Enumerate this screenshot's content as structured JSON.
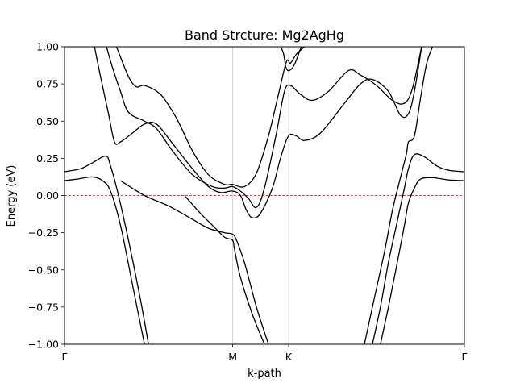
{
  "chart_data": {
    "type": "line",
    "title": "Band Strcture: Mg2AgHg",
    "xlabel": "k-path",
    "ylabel": "Energy (eV)",
    "xlim": [
      0,
      1
    ],
    "ylim": [
      -1.0,
      1.0
    ],
    "yticks": [
      -1.0,
      -0.75,
      -0.5,
      -0.25,
      0.0,
      0.25,
      0.5,
      0.75,
      1.0
    ],
    "ytick_labels": [
      "−1.00",
      "−0.75",
      "−0.50",
      "−0.25",
      "0.00",
      "0.25",
      "0.50",
      "0.75",
      "1.00"
    ],
    "kpoints": [
      {
        "label": "Γ",
        "x": 0.0
      },
      {
        "label": "M",
        "x": 0.4206
      },
      {
        "label": "K",
        "x": 0.5605
      },
      {
        "label": "Γ",
        "x": 1.0
      }
    ],
    "fermi_level": 0.0,
    "grid": "vertical lines at high-symmetry points",
    "colors": {
      "bands": "#000000",
      "fermi": "#ff0000",
      "kpath_lines": "#cccccc"
    },
    "series": [
      {
        "values": [
          [
            0.0,
            0.16
          ],
          [
            0.04,
            0.18
          ],
          [
            0.07,
            0.22
          ],
          [
            0.103,
            0.265
          ],
          [
            0.115,
            0.2
          ],
          [
            0.135,
            0.0
          ],
          [
            0.16,
            -0.3
          ],
          [
            0.19,
            -0.7
          ],
          [
            0.21,
            -1.0
          ]
        ]
      },
      {
        "values": [
          [
            0.0,
            0.1
          ],
          [
            0.03,
            0.11
          ],
          [
            0.07,
            0.125
          ],
          [
            0.095,
            0.1
          ],
          [
            0.115,
            0.03
          ],
          [
            0.14,
            -0.2
          ],
          [
            0.17,
            -0.6
          ],
          [
            0.2,
            -1.0
          ]
        ]
      },
      {
        "values": [
          [
            0.075,
            1.0
          ],
          [
            0.09,
            0.8
          ],
          [
            0.11,
            0.55
          ],
          [
            0.125,
            0.36
          ],
          [
            0.14,
            0.36
          ],
          [
            0.17,
            0.42
          ],
          [
            0.2,
            0.48
          ],
          [
            0.23,
            0.48
          ],
          [
            0.27,
            0.35
          ],
          [
            0.32,
            0.18
          ],
          [
            0.36,
            0.06
          ],
          [
            0.39,
            0.02
          ],
          [
            0.42,
            0.03
          ],
          [
            0.44,
            0.0
          ],
          [
            0.455,
            -0.1
          ],
          [
            0.47,
            -0.15
          ],
          [
            0.49,
            -0.12
          ],
          [
            0.52,
            0.05
          ],
          [
            0.54,
            0.25
          ],
          [
            0.56,
            0.4
          ],
          [
            0.58,
            0.4
          ],
          [
            0.6,
            0.37
          ],
          [
            0.64,
            0.42
          ],
          [
            0.7,
            0.62
          ],
          [
            0.74,
            0.75
          ],
          [
            0.77,
            0.78
          ],
          [
            0.81,
            0.7
          ],
          [
            0.84,
            0.54
          ],
          [
            0.86,
            0.55
          ],
          [
            0.875,
            0.7
          ],
          [
            0.893,
            1.0
          ]
        ]
      },
      {
        "values": [
          [
            0.105,
            1.0
          ],
          [
            0.12,
            0.86
          ],
          [
            0.14,
            0.7
          ],
          [
            0.16,
            0.56
          ],
          [
            0.2,
            0.5
          ],
          [
            0.23,
            0.45
          ],
          [
            0.27,
            0.3
          ],
          [
            0.32,
            0.14
          ],
          [
            0.37,
            0.06
          ],
          [
            0.4,
            0.05
          ],
          [
            0.42,
            0.06
          ],
          [
            0.44,
            0.03
          ],
          [
            0.46,
            -0.02
          ],
          [
            0.48,
            -0.08
          ],
          [
            0.5,
            0.05
          ],
          [
            0.53,
            0.42
          ],
          [
            0.55,
            0.7
          ],
          [
            0.565,
            0.74
          ],
          [
            0.59,
            0.68
          ],
          [
            0.62,
            0.64
          ],
          [
            0.66,
            0.7
          ],
          [
            0.71,
            0.84
          ],
          [
            0.74,
            0.81
          ],
          [
            0.78,
            0.74
          ],
          [
            0.82,
            0.64
          ],
          [
            0.85,
            0.62
          ],
          [
            0.87,
            0.72
          ],
          [
            0.893,
            1.0
          ]
        ]
      },
      {
        "values": [
          [
            0.13,
            1.0
          ],
          [
            0.16,
            0.8
          ],
          [
            0.18,
            0.73
          ],
          [
            0.2,
            0.74
          ],
          [
            0.24,
            0.68
          ],
          [
            0.28,
            0.52
          ],
          [
            0.32,
            0.3
          ],
          [
            0.36,
            0.14
          ],
          [
            0.4,
            0.075
          ],
          [
            0.42,
            0.075
          ],
          [
            0.45,
            0.06
          ],
          [
            0.48,
            0.15
          ],
          [
            0.51,
            0.4
          ],
          [
            0.535,
            0.68
          ],
          [
            0.555,
            0.9
          ],
          [
            0.565,
            0.89
          ],
          [
            0.58,
            0.95
          ],
          [
            0.6,
            1.0
          ]
        ]
      },
      {
        "values": [
          [
            0.541,
            1.0
          ],
          [
            0.548,
            0.95
          ],
          [
            0.554,
            0.86
          ],
          [
            0.562,
            0.84
          ],
          [
            0.575,
            0.88
          ],
          [
            0.592,
            1.0
          ]
        ]
      },
      {
        "values": [
          [
            0.14,
            0.1
          ],
          [
            0.2,
            0.0
          ],
          [
            0.26,
            -0.07
          ],
          [
            0.32,
            -0.16
          ],
          [
            0.36,
            -0.22
          ],
          [
            0.4,
            -0.25
          ],
          [
            0.42,
            -0.26
          ],
          [
            0.43,
            -0.3
          ],
          [
            0.45,
            -0.45
          ],
          [
            0.48,
            -0.75
          ],
          [
            0.51,
            -1.0
          ]
        ]
      },
      {
        "values": [
          [
            0.3,
            0.0
          ],
          [
            0.34,
            -0.12
          ],
          [
            0.37,
            -0.2
          ],
          [
            0.4,
            -0.28
          ],
          [
            0.42,
            -0.3
          ],
          [
            0.425,
            -0.36
          ],
          [
            0.44,
            -0.55
          ],
          [
            0.47,
            -0.8
          ],
          [
            0.5,
            -1.0
          ]
        ]
      },
      {
        "values": [
          [
            0.75,
            -1.0
          ],
          [
            0.77,
            -0.75
          ],
          [
            0.8,
            -0.38
          ],
          [
            0.82,
            -0.1
          ],
          [
            0.84,
            0.12
          ],
          [
            0.855,
            0.28
          ],
          [
            0.86,
            0.36
          ],
          [
            0.875,
            0.4
          ],
          [
            0.89,
            0.65
          ],
          [
            0.905,
            0.88
          ],
          [
            0.92,
            1.0
          ]
        ]
      },
      {
        "values": [
          [
            0.77,
            -1.0
          ],
          [
            0.79,
            -0.75
          ],
          [
            0.81,
            -0.45
          ],
          [
            0.83,
            -0.2
          ],
          [
            0.85,
            0.05
          ],
          [
            0.86,
            0.18
          ],
          [
            0.875,
            0.275
          ],
          [
            0.9,
            0.26
          ],
          [
            0.93,
            0.2
          ],
          [
            0.96,
            0.17
          ],
          [
            1.0,
            0.16
          ]
        ]
      },
      {
        "values": [
          [
            0.79,
            -1.0
          ],
          [
            0.81,
            -0.75
          ],
          [
            0.83,
            -0.48
          ],
          [
            0.85,
            -0.2
          ],
          [
            0.86,
            -0.05
          ],
          [
            0.875,
            0.05
          ],
          [
            0.89,
            0.11
          ],
          [
            0.92,
            0.12
          ],
          [
            0.96,
            0.105
          ],
          [
            1.0,
            0.1
          ]
        ]
      }
    ]
  }
}
